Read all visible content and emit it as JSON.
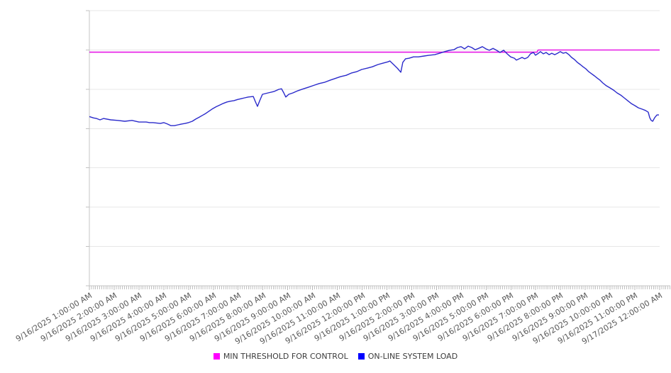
{
  "page": {
    "background": "#ffffff"
  },
  "chart_data": {
    "type": "line",
    "title": "",
    "x_axis": {
      "start_hour": 1,
      "end_hour": 24,
      "minor_tick_minutes": 5,
      "label_rotation_deg": -31,
      "tick_labels": [
        "9/16/2025 1:00:00 AM",
        "9/16/2025 2:00:00 AM",
        "9/16/2025 3:00:00 AM",
        "9/16/2025 4:00:00 AM",
        "9/16/2025 5:00:00 AM",
        "9/16/2025 6:00:00 AM",
        "9/16/2025 7:00:00 AM",
        "9/16/2025 8:00:00 AM",
        "9/16/2025 9:00:00 AM",
        "9/16/2025 10:00:00 AM",
        "9/16/2025 11:00:00 AM",
        "9/16/2025 12:00:00 PM",
        "9/16/2025 1:00:00 PM",
        "9/16/2025 2:00:00 PM",
        "9/16/2025 3:00:00 PM",
        "9/16/2025 4:00:00 PM",
        "9/16/2025 5:00:00 PM",
        "9/16/2025 6:00:00 PM",
        "9/16/2025 7:00:00 PM",
        "9/16/2025 8:00:00 PM",
        "9/16/2025 9:00:00 PM",
        "9/16/2025 10:00:00 PM",
        "9/16/2025 11:00:00 PM",
        "9/17/2025 12:00:00 AM"
      ]
    },
    "y_axis": {
      "min": 0,
      "max": 100,
      "gridline_divisions": 7,
      "tick_labels_visible": false,
      "tick_labels": []
    },
    "series": [
      {
        "name": "MIN THRESHOLD FOR CONTROL",
        "color": "#e619e6",
        "width": 1.6,
        "points": [
          [
            1.0,
            84.9
          ],
          [
            19.05,
            84.9
          ],
          [
            19.1,
            85.7
          ],
          [
            24.0,
            85.7
          ]
        ]
      },
      {
        "name": "ON-LINE SYSTEM LOAD",
        "color": "#2a2acb",
        "width": 1.4,
        "points": [
          [
            1.0,
            61.5
          ],
          [
            1.17,
            61.0
          ],
          [
            1.29,
            60.8
          ],
          [
            1.43,
            60.3
          ],
          [
            1.57,
            60.8
          ],
          [
            1.86,
            60.3
          ],
          [
            2.14,
            60.1
          ],
          [
            2.43,
            59.8
          ],
          [
            2.72,
            60.1
          ],
          [
            3.0,
            59.5
          ],
          [
            3.29,
            59.5
          ],
          [
            3.43,
            59.3
          ],
          [
            3.57,
            59.3
          ],
          [
            3.86,
            59.0
          ],
          [
            4.0,
            59.3
          ],
          [
            4.15,
            58.8
          ],
          [
            4.29,
            58.2
          ],
          [
            4.43,
            58.2
          ],
          [
            4.58,
            58.5
          ],
          [
            4.72,
            58.8
          ],
          [
            4.86,
            59.0
          ],
          [
            5.0,
            59.3
          ],
          [
            5.15,
            59.8
          ],
          [
            5.29,
            60.6
          ],
          [
            5.43,
            61.3
          ],
          [
            5.55,
            61.9
          ],
          [
            5.69,
            62.6
          ],
          [
            5.98,
            64.4
          ],
          [
            6.12,
            65.1
          ],
          [
            6.26,
            65.7
          ],
          [
            6.4,
            66.3
          ],
          [
            6.55,
            66.8
          ],
          [
            6.69,
            67.1
          ],
          [
            6.83,
            67.3
          ],
          [
            6.98,
            67.7
          ],
          [
            7.12,
            68.0
          ],
          [
            7.26,
            68.3
          ],
          [
            7.41,
            68.6
          ],
          [
            7.61,
            68.8
          ],
          [
            7.69,
            67.0
          ],
          [
            7.78,
            65.2
          ],
          [
            7.87,
            67.3
          ],
          [
            7.98,
            69.6
          ],
          [
            8.21,
            70.1
          ],
          [
            8.44,
            70.6
          ],
          [
            8.64,
            71.4
          ],
          [
            8.75,
            71.6
          ],
          [
            8.84,
            70.1
          ],
          [
            8.92,
            68.6
          ],
          [
            9.04,
            69.6
          ],
          [
            9.21,
            70.1
          ],
          [
            9.41,
            70.9
          ],
          [
            9.64,
            71.6
          ],
          [
            9.84,
            72.2
          ],
          [
            10.07,
            72.9
          ],
          [
            10.27,
            73.5
          ],
          [
            10.5,
            74.0
          ],
          [
            10.7,
            74.7
          ],
          [
            10.9,
            75.3
          ],
          [
            11.13,
            76.0
          ],
          [
            11.36,
            76.5
          ],
          [
            11.56,
            77.3
          ],
          [
            11.78,
            77.8
          ],
          [
            11.98,
            78.6
          ],
          [
            12.21,
            79.1
          ],
          [
            12.41,
            79.6
          ],
          [
            12.64,
            80.4
          ],
          [
            12.84,
            80.9
          ],
          [
            13.04,
            81.4
          ],
          [
            13.12,
            81.7
          ],
          [
            13.27,
            80.4
          ],
          [
            13.43,
            79.0
          ],
          [
            13.56,
            77.6
          ],
          [
            13.64,
            81.2
          ],
          [
            13.75,
            82.5
          ],
          [
            13.9,
            82.7
          ],
          [
            14.07,
            83.2
          ],
          [
            14.27,
            83.2
          ],
          [
            14.5,
            83.5
          ],
          [
            14.7,
            83.8
          ],
          [
            14.93,
            84.0
          ],
          [
            15.13,
            84.5
          ],
          [
            15.33,
            85.1
          ],
          [
            15.53,
            85.6
          ],
          [
            15.7,
            85.8
          ],
          [
            15.85,
            86.6
          ],
          [
            15.99,
            86.9
          ],
          [
            16.13,
            86.1
          ],
          [
            16.28,
            87.1
          ],
          [
            16.42,
            86.6
          ],
          [
            16.56,
            85.8
          ],
          [
            16.7,
            86.3
          ],
          [
            16.85,
            86.9
          ],
          [
            16.99,
            86.1
          ],
          [
            17.13,
            85.6
          ],
          [
            17.28,
            86.3
          ],
          [
            17.42,
            85.6
          ],
          [
            17.56,
            84.8
          ],
          [
            17.71,
            85.6
          ],
          [
            17.85,
            84.3
          ],
          [
            17.99,
            83.2
          ],
          [
            18.14,
            82.7
          ],
          [
            18.22,
            82.0
          ],
          [
            18.34,
            82.5
          ],
          [
            18.45,
            83.0
          ],
          [
            18.56,
            82.5
          ],
          [
            18.68,
            83.0
          ],
          [
            18.79,
            84.3
          ],
          [
            18.91,
            84.8
          ],
          [
            18.99,
            83.8
          ],
          [
            19.08,
            84.3
          ],
          [
            19.19,
            85.1
          ],
          [
            19.31,
            84.3
          ],
          [
            19.42,
            84.8
          ],
          [
            19.54,
            84.0
          ],
          [
            19.65,
            84.5
          ],
          [
            19.77,
            84.0
          ],
          [
            19.88,
            84.5
          ],
          [
            19.99,
            85.1
          ],
          [
            20.11,
            84.5
          ],
          [
            20.22,
            84.8
          ],
          [
            20.34,
            84.0
          ],
          [
            20.45,
            83.0
          ],
          [
            20.57,
            82.2
          ],
          [
            20.68,
            81.2
          ],
          [
            20.8,
            80.4
          ],
          [
            20.91,
            79.6
          ],
          [
            21.02,
            78.9
          ],
          [
            21.14,
            77.8
          ],
          [
            21.25,
            77.1
          ],
          [
            21.37,
            76.3
          ],
          [
            21.48,
            75.5
          ],
          [
            21.6,
            74.7
          ],
          [
            21.71,
            73.7
          ],
          [
            21.85,
            72.7
          ],
          [
            22.0,
            71.9
          ],
          [
            22.14,
            71.1
          ],
          [
            22.28,
            70.1
          ],
          [
            22.43,
            69.3
          ],
          [
            22.57,
            68.3
          ],
          [
            22.71,
            67.3
          ],
          [
            22.86,
            66.2
          ],
          [
            23.0,
            65.5
          ],
          [
            23.14,
            64.7
          ],
          [
            23.29,
            64.2
          ],
          [
            23.43,
            63.7
          ],
          [
            23.54,
            63.1
          ],
          [
            23.6,
            61.1
          ],
          [
            23.66,
            60.1
          ],
          [
            23.72,
            59.8
          ],
          [
            23.8,
            61.1
          ],
          [
            23.89,
            62.1
          ],
          [
            23.97,
            62.1
          ]
        ]
      }
    ],
    "legend": {
      "position": "bottom-center",
      "items": [
        {
          "label": "MIN THRESHOLD FOR CONTROL",
          "swatch_color": "#ff00ff"
        },
        {
          "label": "ON-LINE SYSTEM LOAD",
          "swatch_color": "#0000ff"
        }
      ]
    },
    "layout_hints": {
      "grid": "horizontal-only",
      "gridline_color": "#e7e7e7",
      "axis_color": "#c6c6c6",
      "tick_color": "#c2c2c2",
      "label_color": "#595959"
    }
  }
}
